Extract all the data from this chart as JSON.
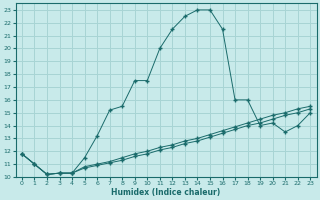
{
  "xlabel": "Humidex (Indice chaleur)",
  "background_color": "#c8eaea",
  "grid_color": "#a8d4d4",
  "line_color": "#1a6b6b",
  "xlim": [
    -0.5,
    23.5
  ],
  "ylim": [
    10,
    23.5
  ],
  "xticks": [
    0,
    1,
    2,
    3,
    4,
    5,
    6,
    7,
    8,
    9,
    10,
    11,
    12,
    13,
    14,
    15,
    16,
    17,
    18,
    19,
    20,
    21,
    22,
    23
  ],
  "yticks": [
    10,
    11,
    12,
    13,
    14,
    15,
    16,
    17,
    18,
    19,
    20,
    21,
    22,
    23
  ],
  "line1_x": [
    0,
    1,
    2,
    3,
    4,
    5,
    6,
    7,
    8,
    9,
    10,
    11,
    12,
    13,
    14,
    15,
    16,
    17,
    18,
    19,
    20,
    21,
    22,
    23
  ],
  "line1_y": [
    11.8,
    11.0,
    10.2,
    10.3,
    10.3,
    11.5,
    13.2,
    15.2,
    15.5,
    17.5,
    17.5,
    20.0,
    21.5,
    22.5,
    23.0,
    23.0,
    21.5,
    16.0,
    16.0,
    14.0,
    14.2,
    13.5,
    14.0,
    15.0
  ],
  "line2_x": [
    0,
    1,
    2,
    3,
    4,
    5,
    6,
    7,
    8,
    9,
    10,
    11,
    12,
    13,
    14,
    15,
    16,
    17,
    18,
    19,
    20,
    21,
    22,
    23
  ],
  "line2_y": [
    11.8,
    11.0,
    10.2,
    10.3,
    10.3,
    10.8,
    11.0,
    11.2,
    11.5,
    11.8,
    12.0,
    12.3,
    12.5,
    12.8,
    13.0,
    13.3,
    13.6,
    13.9,
    14.2,
    14.5,
    14.8,
    15.0,
    15.3,
    15.5
  ],
  "line3_x": [
    0,
    1,
    2,
    3,
    4,
    5,
    6,
    7,
    8,
    9,
    10,
    11,
    12,
    13,
    14,
    15,
    16,
    17,
    18,
    19,
    20,
    21,
    22,
    23
  ],
  "line3_y": [
    11.8,
    11.0,
    10.2,
    10.3,
    10.3,
    10.7,
    10.9,
    11.1,
    11.3,
    11.6,
    11.8,
    12.1,
    12.3,
    12.6,
    12.8,
    13.1,
    13.4,
    13.7,
    14.0,
    14.2,
    14.5,
    14.8,
    15.0,
    15.3
  ]
}
